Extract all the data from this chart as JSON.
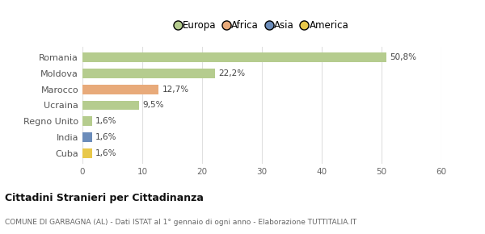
{
  "categories": [
    "Romania",
    "Moldova",
    "Marocco",
    "Ucraina",
    "Regno Unito",
    "India",
    "Cuba"
  ],
  "values": [
    50.8,
    22.2,
    12.7,
    9.5,
    1.6,
    1.6,
    1.6
  ],
  "labels": [
    "50,8%",
    "22,2%",
    "12,7%",
    "9,5%",
    "1,6%",
    "1,6%",
    "1,6%"
  ],
  "colors": [
    "#b5cc8e",
    "#b5cc8e",
    "#e8aa7a",
    "#b5cc8e",
    "#b5cc8e",
    "#6b8cba",
    "#e8c84a"
  ],
  "continent_colors": {
    "Europa": "#b5cc8e",
    "Africa": "#e8aa7a",
    "Asia": "#6b8cba",
    "America": "#e8c84a"
  },
  "legend_labels": [
    "Europa",
    "Africa",
    "Asia",
    "America"
  ],
  "xlim": [
    0,
    60
  ],
  "xticks": [
    0,
    10,
    20,
    30,
    40,
    50,
    60
  ],
  "title": "Cittadini Stranieri per Cittadinanza",
  "subtitle": "COMUNE DI GARBAGNA (AL) - Dati ISTAT al 1° gennaio di ogni anno - Elaborazione TUTTITALIA.IT",
  "bg_color": "#ffffff",
  "grid_color": "#e0e0e0",
  "bar_height": 0.6
}
